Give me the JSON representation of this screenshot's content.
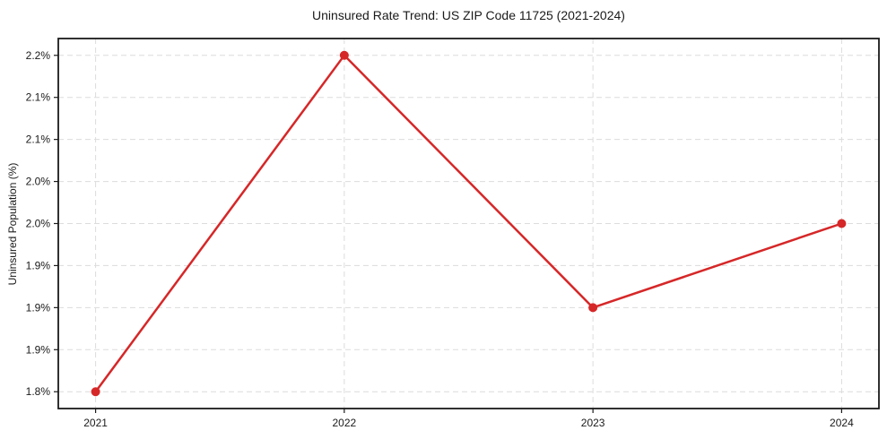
{
  "chart_data": {
    "type": "line",
    "title": "Uninsured Rate Trend: US ZIP Code 11725 (2021-2024)",
    "xlabel": "",
    "ylabel": "Uninsured Population (%)",
    "x": [
      2021,
      2022,
      2023,
      2024
    ],
    "values": [
      1.8,
      2.2,
      1.9,
      2.0
    ],
    "xlim": [
      2020.85,
      2024.15
    ],
    "ylim": [
      1.78,
      2.22
    ],
    "xticks": {
      "values": [
        2021,
        2022,
        2023,
        2024
      ],
      "labels": [
        "2021",
        "2022",
        "2023",
        "2024"
      ]
    },
    "yticks": {
      "values": [
        1.8,
        1.85,
        1.9,
        1.95,
        2.0,
        2.05,
        2.1,
        2.15,
        2.2
      ],
      "labels": [
        "1.8%",
        "1.9%",
        "1.9%",
        "1.9%",
        "2.0%",
        "2.0%",
        "2.1%",
        "2.1%",
        "2.2%"
      ]
    },
    "grid": true,
    "grid_style": "dashed",
    "legend": false,
    "colors": {
      "line": "#d62728",
      "marker": "#d62728",
      "grid": "#dcdcdc",
      "spine": "#1a1a1a",
      "text": "#1a1a1a",
      "background": "#ffffff"
    }
  }
}
